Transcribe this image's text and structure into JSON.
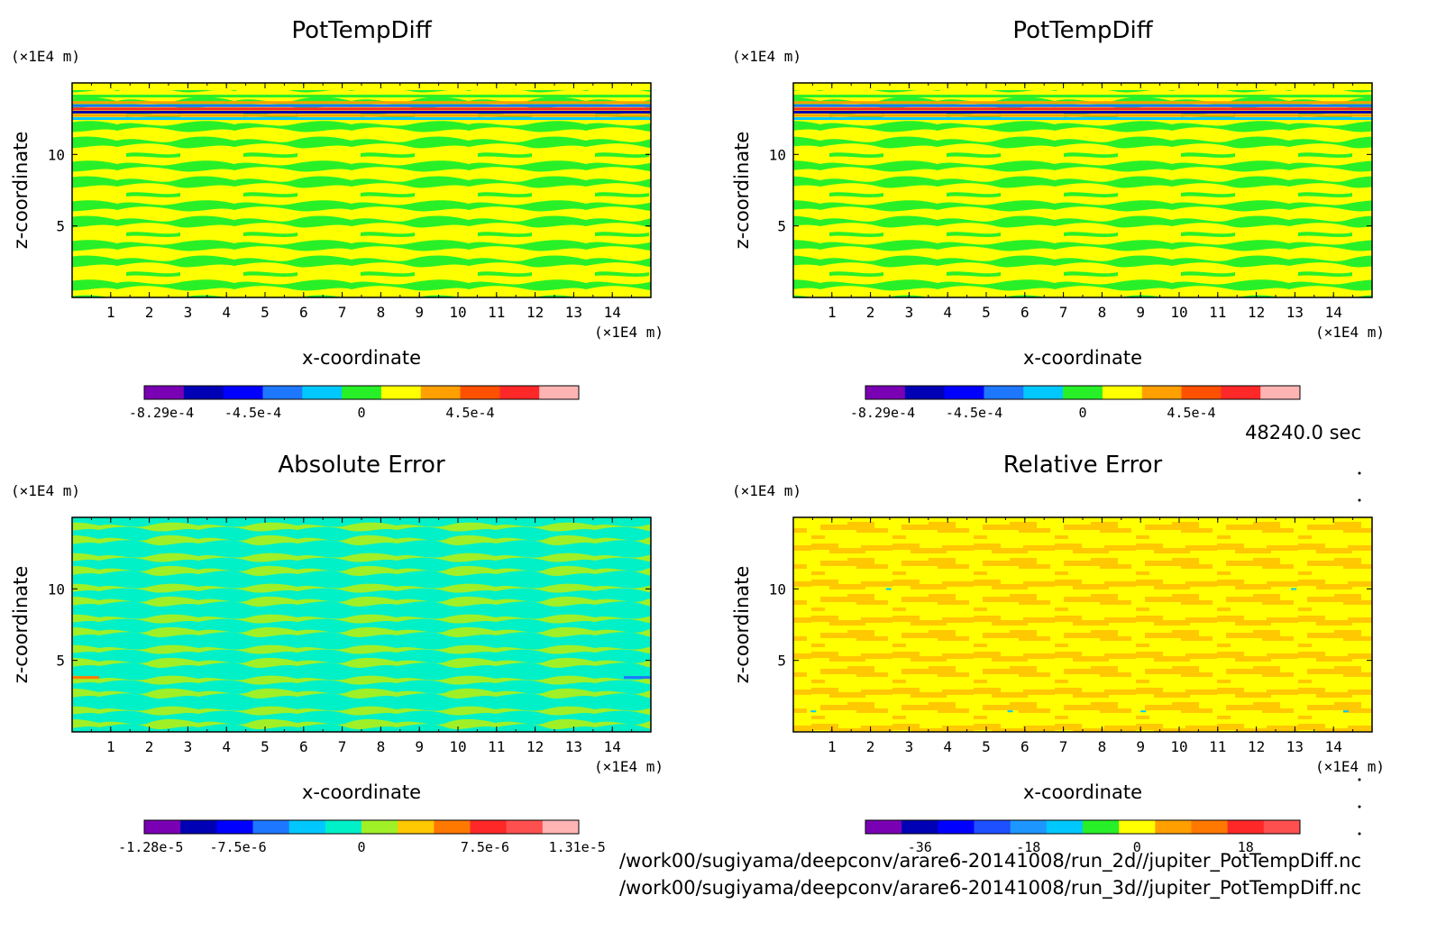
{
  "time_label": "48240.0 sec",
  "file_paths": [
    "/work00/sugiyama/deepconv/arare6-20141008/run_2d//jupiter_PotTempDiff.nc",
    "/work00/sugiyama/deepconv/arare6-20141008/run_3d//jupiter_PotTempDiff.nc"
  ],
  "chart_data": [
    {
      "type": "heatmap",
      "title": "PotTempDiff",
      "xlabel": "x-coordinate",
      "ylabel": "z-coordinate",
      "x_unit": "(×1E4 m)",
      "y_unit": "(×1E4 m)",
      "xlim": [
        0,
        15
      ],
      "ylim": [
        0,
        15
      ],
      "x_ticks": [
        1,
        2,
        3,
        4,
        5,
        6,
        7,
        8,
        9,
        10,
        11,
        12,
        13,
        14
      ],
      "y_ticks": [
        5,
        10
      ],
      "pattern": "pot",
      "colorbar": {
        "colors": [
          "#7a00b4",
          "#0000b4",
          "#0000ff",
          "#1e78ff",
          "#00c8ff",
          "#28f028",
          "#ffff00",
          "#ffa000",
          "#ff5000",
          "#ff2828",
          "#ffb4b4"
        ],
        "tick_labels": [
          "-8.29e-4",
          "-4.5e-4",
          "0",
          "4.5e-4"
        ],
        "tick_values": [
          -0.000829,
          -0.00045,
          0,
          0.00045
        ],
        "vmin": -0.0009,
        "vmax": 0.0009
      }
    },
    {
      "type": "heatmap",
      "title": "PotTempDiff",
      "xlabel": "x-coordinate",
      "ylabel": "z-coordinate",
      "x_unit": "(×1E4 m)",
      "y_unit": "(×1E4 m)",
      "xlim": [
        0,
        15
      ],
      "ylim": [
        0,
        15
      ],
      "x_ticks": [
        1,
        2,
        3,
        4,
        5,
        6,
        7,
        8,
        9,
        10,
        11,
        12,
        13,
        14
      ],
      "y_ticks": [
        5,
        10
      ],
      "pattern": "pot",
      "colorbar": {
        "colors": [
          "#7a00b4",
          "#0000b4",
          "#0000ff",
          "#1e78ff",
          "#00c8ff",
          "#28f028",
          "#ffff00",
          "#ffa000",
          "#ff5000",
          "#ff2828",
          "#ffb4b4"
        ],
        "tick_labels": [
          "-8.29e-4",
          "-4.5e-4",
          "0",
          "4.5e-4"
        ],
        "tick_values": [
          -0.000829,
          -0.00045,
          0,
          0.00045
        ],
        "vmin": -0.0009,
        "vmax": 0.0009
      }
    },
    {
      "type": "heatmap",
      "title": "Absolute Error",
      "xlabel": "x-coordinate",
      "ylabel": "z-coordinate",
      "x_unit": "(×1E4 m)",
      "y_unit": "(×1E4 m)",
      "xlim": [
        0,
        15
      ],
      "ylim": [
        0,
        15
      ],
      "x_ticks": [
        1,
        2,
        3,
        4,
        5,
        6,
        7,
        8,
        9,
        10,
        11,
        12,
        13,
        14
      ],
      "y_ticks": [
        5,
        10
      ],
      "pattern": "abs",
      "colorbar": {
        "colors": [
          "#7a00b4",
          "#0000b4",
          "#0000ff",
          "#1e78ff",
          "#00c8ff",
          "#00f0c8",
          "#a0f028",
          "#ffc800",
          "#ff7800",
          "#ff2828",
          "#ff5050",
          "#ffb4b4"
        ],
        "tick_labels": [
          "-1.28e-5",
          "-7.5e-6",
          "0",
          "7.5e-6",
          "1.31e-5"
        ],
        "tick_values": [
          -1.28e-05,
          -7.5e-06,
          0,
          7.5e-06,
          1.31e-05
        ],
        "vmin": -1.32e-05,
        "vmax": 1.32e-05
      }
    },
    {
      "type": "heatmap",
      "title": "Relative Error",
      "xlabel": "x-coordinate",
      "ylabel": "z-coordinate",
      "x_unit": "(×1E4 m)",
      "y_unit": "(×1E4 m)",
      "xlim": [
        0,
        15
      ],
      "ylim": [
        0,
        15
      ],
      "x_ticks": [
        1,
        2,
        3,
        4,
        5,
        6,
        7,
        8,
        9,
        10,
        11,
        12,
        13,
        14
      ],
      "y_ticks": [
        5,
        10
      ],
      "pattern": "rel",
      "colorbar": {
        "colors": [
          "#7a00b4",
          "#0000b4",
          "#0000ff",
          "#1e50ff",
          "#1e96ff",
          "#00c8ff",
          "#28f028",
          "#ffff00",
          "#ffa000",
          "#ff7800",
          "#ff2828",
          "#ff5050"
        ],
        "tick_labels": [
          "-36",
          "-18",
          "0",
          "18"
        ],
        "tick_values": [
          -36,
          -18,
          0,
          18
        ],
        "vmin": -45,
        "vmax": 27
      }
    }
  ]
}
